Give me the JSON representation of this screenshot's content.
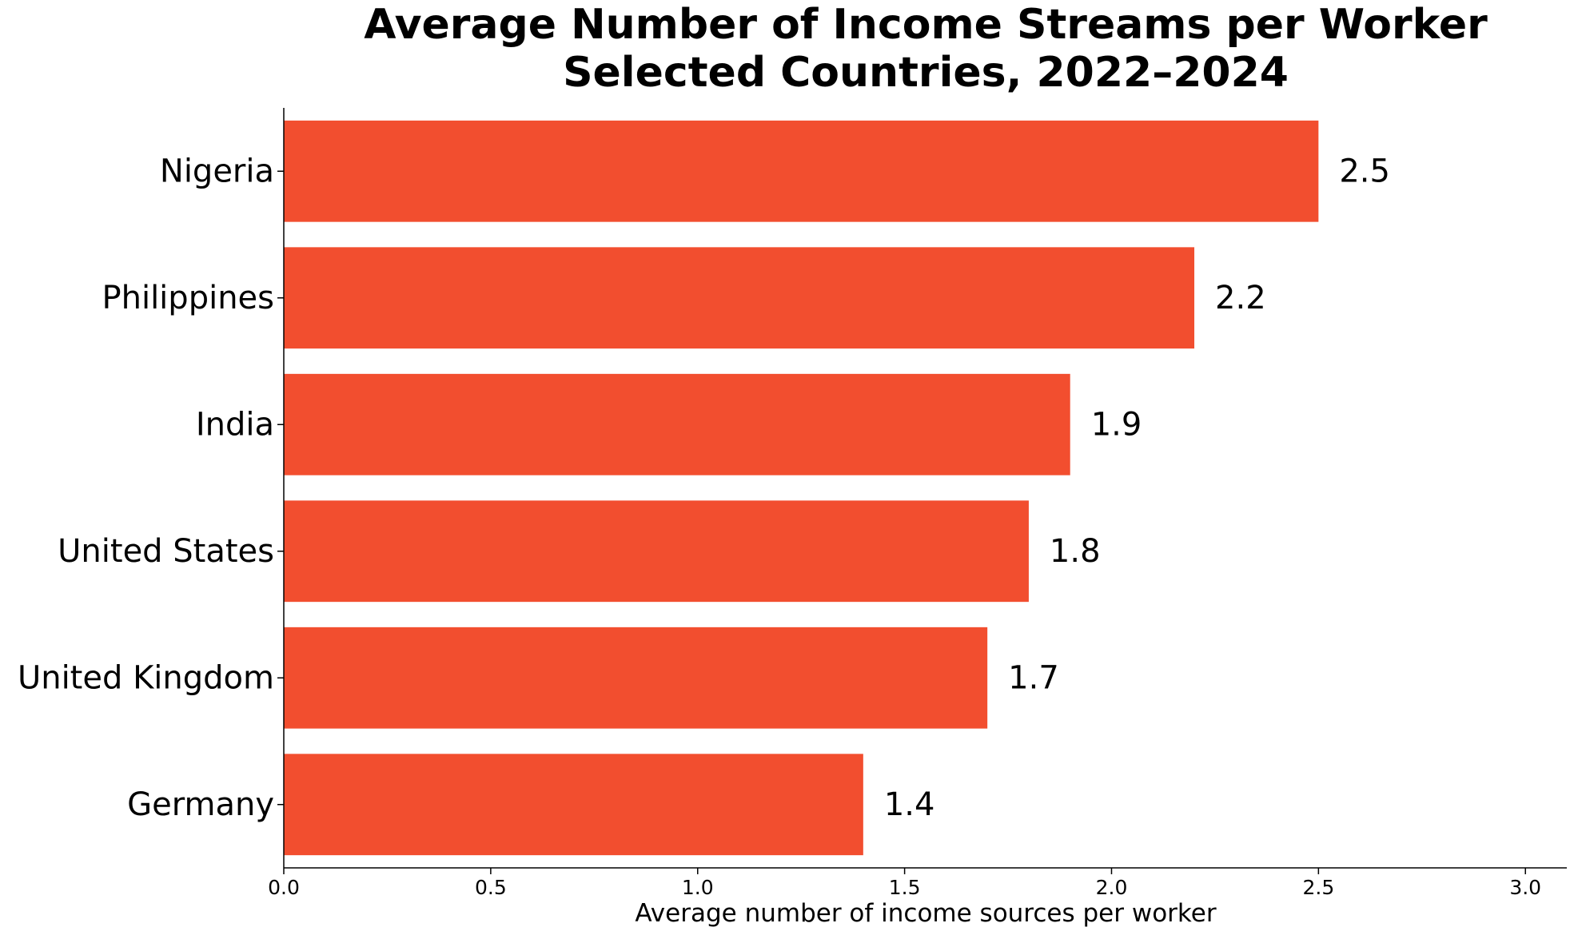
{
  "chart_data": {
    "type": "bar",
    "orientation": "horizontal",
    "title_lines": [
      "Average Number of Income Streams per Worker",
      "Selected Countries, 2022–2024"
    ],
    "categories": [
      "Nigeria",
      "Philippines",
      "India",
      "United States",
      "United Kingdom",
      "Germany"
    ],
    "values": [
      2.5,
      2.2,
      1.9,
      1.8,
      1.7,
      1.4
    ],
    "value_labels": [
      "2.5",
      "2.2",
      "1.9",
      "1.8",
      "1.7",
      "1.4"
    ],
    "xlabel": "Average number of income sources per worker",
    "ylabel": "",
    "xlim": [
      0,
      3.1
    ],
    "xticks": [
      0.0,
      0.5,
      1.0,
      1.5,
      2.0,
      2.5,
      3.0
    ],
    "xtick_labels": [
      "0.0",
      "0.5",
      "1.0",
      "1.5",
      "2.0",
      "2.5",
      "3.0"
    ],
    "bar_color": "#f24e2f",
    "grid": false
  }
}
